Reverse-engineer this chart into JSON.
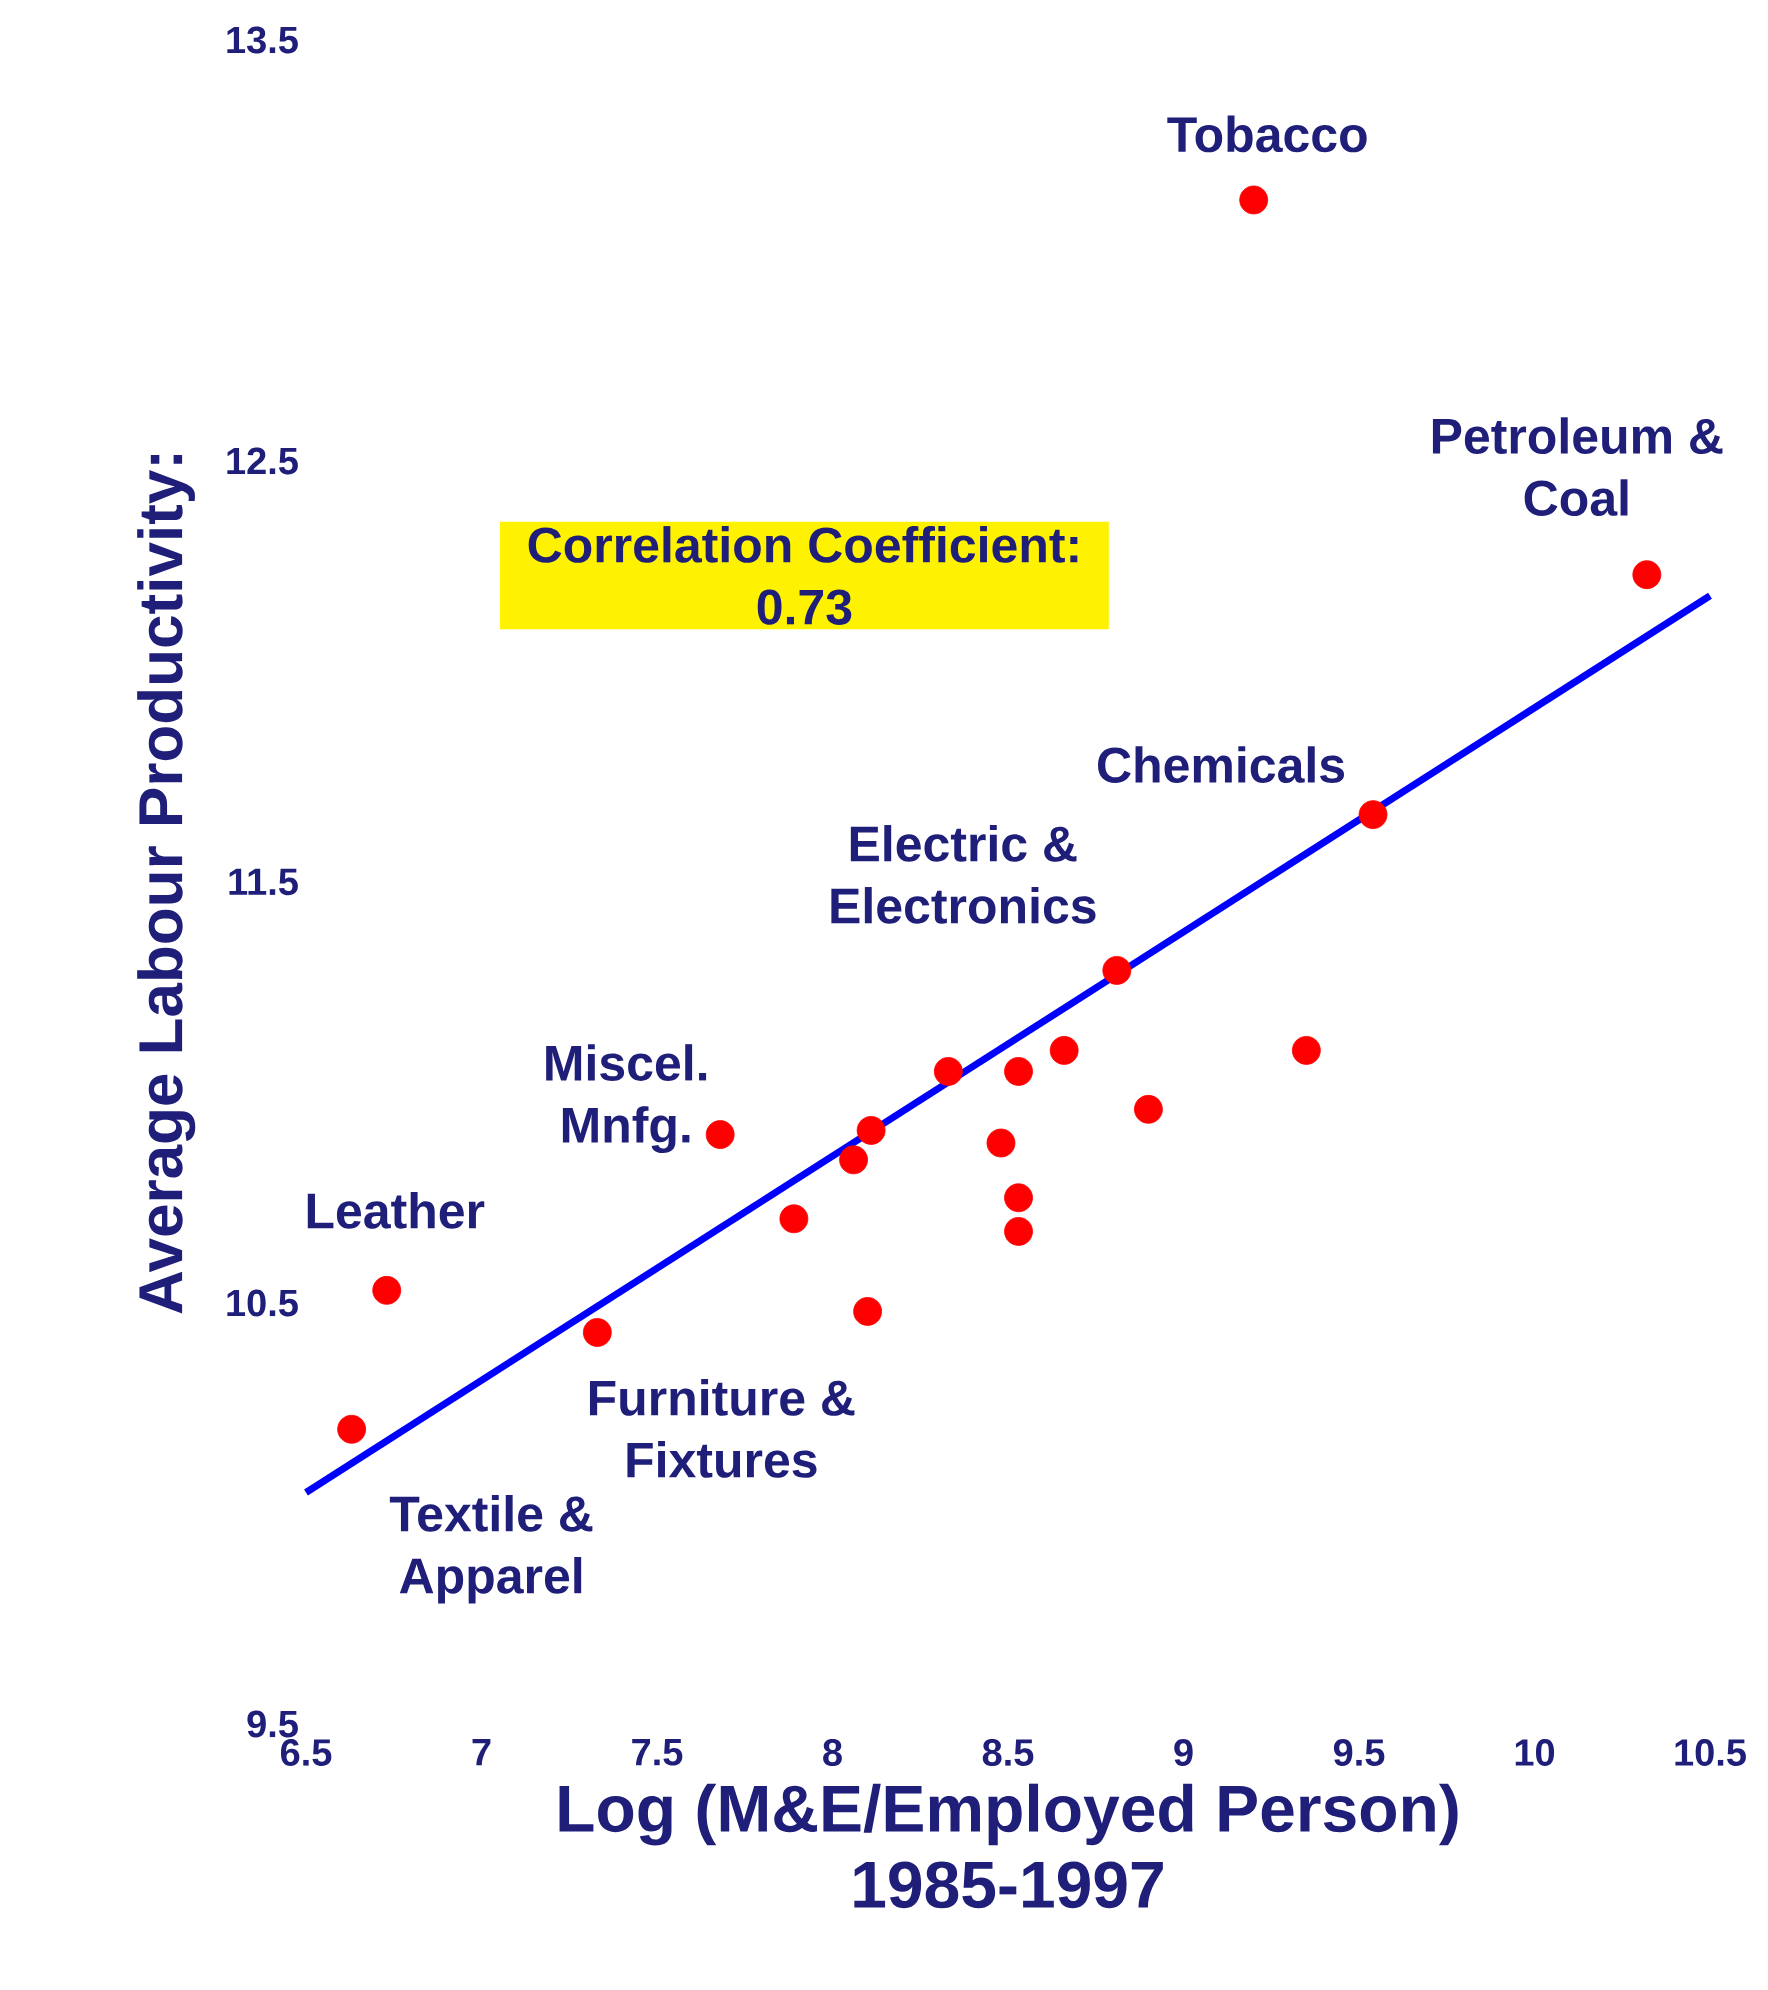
{
  "chart_data": {
    "type": "scatter",
    "xlabel": "Log (M&E/Employed Person) 1985-1997",
    "ylabel": "Average Labour Productivity:",
    "xlim": [
      6.5,
      10.5
    ],
    "ylim": [
      9.5,
      13.5
    ],
    "xticks": [
      6.5,
      7,
      7.5,
      8,
      8.5,
      9,
      9.5,
      10,
      10.5
    ],
    "yticks": [
      9.5,
      10.5,
      11.5,
      12.5,
      13.5
    ],
    "marker": "circle",
    "series": [
      {
        "type": "scatter",
        "color": "#ff0000",
        "x": [
          9.2,
          10.32,
          9.54,
          8.81,
          9.35,
          8.66,
          8.33,
          8.53,
          8.9,
          7.68,
          8.11,
          8.06,
          8.48,
          7.89,
          8.53,
          8.53,
          6.73,
          8.1,
          7.33,
          6.63
        ],
        "values": [
          13.12,
          12.23,
          11.66,
          11.29,
          11.1,
          11.1,
          11.05,
          11.05,
          10.96,
          10.9,
          10.91,
          10.84,
          10.88,
          10.7,
          10.75,
          10.67,
          10.53,
          10.48,
          10.43,
          10.2
        ]
      },
      {
        "type": "line",
        "color": "#0000ff",
        "line_style": "solid",
        "marker": "none",
        "x": [
          6.5,
          10.5
        ],
        "values": [
          10.05,
          12.18
        ]
      }
    ],
    "annotations": [
      {
        "text": "Tobacco",
        "x": 9.2,
        "y": 13.12
      },
      {
        "text": "Petroleum & Coal",
        "x": 10.32,
        "y": 12.23
      },
      {
        "text": "Chemicals",
        "x": 9.54,
        "y": 11.66
      },
      {
        "text": "Electric & Electronics",
        "x": 8.81,
        "y": 11.29
      },
      {
        "text": "Miscel. Mnfg.",
        "x": 7.68,
        "y": 10.9
      },
      {
        "text": "Leather",
        "x": 6.73,
        "y": 10.53
      },
      {
        "text": "Furniture & Fixtures",
        "x": 7.33,
        "y": 10.43
      },
      {
        "text": "Textile & Apparel",
        "x": 6.63,
        "y": 10.2
      },
      "Correlation Coefficient: 0.73"
    ]
  }
}
